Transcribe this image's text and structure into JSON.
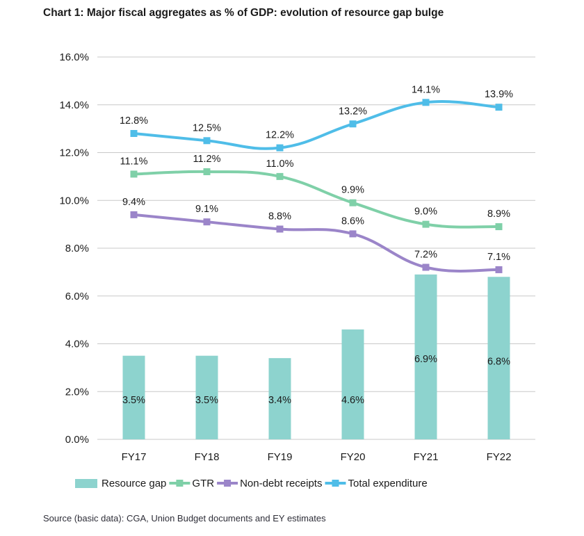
{
  "chart_data": {
    "type": "bar+line",
    "title": "Chart 1: Major fiscal aggregates as % of GDP: evolution of resource gap bulge",
    "source": "Source (basic data): CGA, Union Budget documents and EY estimates",
    "categories": [
      "FY17",
      "FY18",
      "FY19",
      "FY20",
      "FY21",
      "FY22"
    ],
    "ylim": [
      0,
      16
    ],
    "yticks": [
      0,
      2,
      4,
      6,
      8,
      10,
      12,
      14,
      16
    ],
    "ytick_labels": [
      "0.0%",
      "2.0%",
      "4.0%",
      "6.0%",
      "8.0%",
      "10.0%",
      "12.0%",
      "14.0%",
      "16.0%"
    ],
    "grid": true,
    "legend_position": "bottom",
    "series": [
      {
        "name": "Resource gap",
        "kind": "bar",
        "color": "#8dd3ce",
        "values": [
          3.5,
          3.5,
          3.4,
          4.6,
          6.9,
          6.8
        ],
        "labels": [
          "3.5%",
          "3.5%",
          "3.4%",
          "4.6%",
          "6.9%",
          "6.8%"
        ]
      },
      {
        "name": "GTR",
        "kind": "line",
        "color": "#7fd0a8",
        "values": [
          11.1,
          11.2,
          11.0,
          9.9,
          9.0,
          8.9
        ],
        "labels": [
          "11.1%",
          "11.2%",
          "11.0%",
          "9.9%",
          "9.0%",
          "8.9%"
        ]
      },
      {
        "name": "Non-debt receipts",
        "kind": "line",
        "color": "#9b85c9",
        "values": [
          9.4,
          9.1,
          8.8,
          8.6,
          7.2,
          7.1
        ],
        "labels": [
          "9.4%",
          "9.1%",
          "8.8%",
          "8.6%",
          "7.2%",
          "7.1%"
        ]
      },
      {
        "name": "Total expenditure",
        "kind": "line",
        "color": "#4fbde8",
        "values": [
          12.8,
          12.5,
          12.2,
          13.2,
          14.1,
          13.9
        ],
        "labels": [
          "12.8%",
          "12.5%",
          "12.2%",
          "13.2%",
          "14.1%",
          "13.9%"
        ]
      }
    ]
  }
}
